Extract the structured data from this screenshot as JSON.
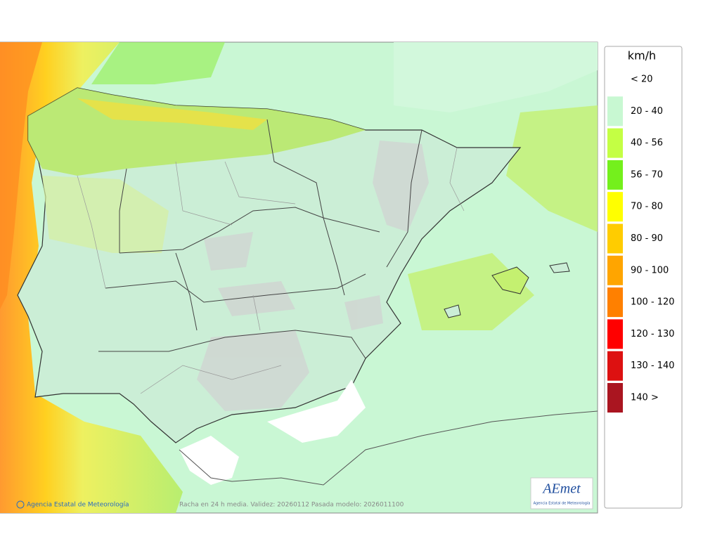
{
  "legend": {
    "unit": "km/h",
    "items": [
      {
        "label": "< 20",
        "color": "#ffffff"
      },
      {
        "label": "20 - 40",
        "color": "#c8f8d2"
      },
      {
        "label": "40 - 56",
        "color": "#c4ff44"
      },
      {
        "label": "56 - 70",
        "color": "#74f01c"
      },
      {
        "label": "70 - 80",
        "color": "#ffff00"
      },
      {
        "label": "80 - 90",
        "color": "#ffcc00"
      },
      {
        "label": "90 - 100",
        "color": "#ffa500"
      },
      {
        "label": "100 - 120",
        "color": "#ff8000"
      },
      {
        "label": "120 - 130",
        "color": "#ff0000"
      },
      {
        "label": "130 - 140",
        "color": "#dd1111"
      },
      {
        "label": "140 >",
        "color": "#aa1520"
      }
    ]
  },
  "footer": {
    "credit": "Agencia Estatal de Meteorología",
    "caption": "Racha en 24 h media. Validez: 20260112 Pasada modelo: 2026011100"
  },
  "logo": {
    "text": "AEmet",
    "subtitle": "Agencia Estatal de Meteorología"
  }
}
